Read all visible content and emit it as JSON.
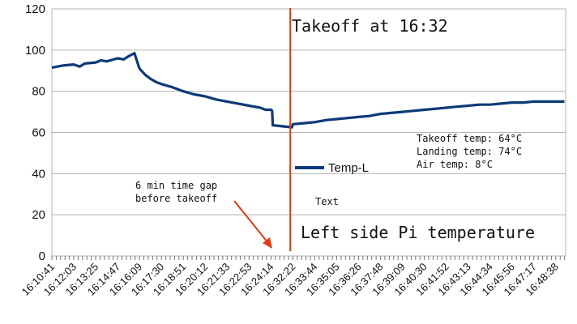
{
  "chart_data": {
    "type": "line",
    "title": "",
    "xlabel": "",
    "ylabel": "",
    "ylim": [
      0,
      120
    ],
    "yticks": [
      0,
      20,
      40,
      60,
      80,
      100,
      120
    ],
    "grid": "horizontal",
    "legend": "center",
    "x_tick_labels": [
      "16:10:41",
      "16:12:03",
      "16:13:25",
      "16:14:47",
      "16:16:09",
      "16:17:30",
      "16:18:51",
      "16:20:12",
      "16:21:33",
      "16:22:53",
      "16:24:14",
      "16:32:22",
      "16:33:44",
      "16:35:05",
      "16:36:26",
      "16:37:48",
      "16:39:09",
      "16:40:30",
      "16:41:52",
      "16:43:13",
      "16:44:34",
      "16:45:56",
      "16:47:17",
      "16:48:38"
    ],
    "series": [
      {
        "name": "Temp-L",
        "color": "#0d3a78",
        "points": [
          [
            "16:10:41",
            91.5
          ],
          [
            "16:11:22",
            92.5
          ],
          [
            "16:12:03",
            93
          ],
          [
            "16:12:25",
            92
          ],
          [
            "16:12:44",
            93.5
          ],
          [
            "16:13:25",
            94
          ],
          [
            "16:13:45",
            95
          ],
          [
            "16:14:06",
            94.5
          ],
          [
            "16:14:47",
            96
          ],
          [
            "16:15:10",
            95.5
          ],
          [
            "16:15:28",
            97
          ],
          [
            "16:15:50",
            98.5
          ],
          [
            "16:16:09",
            91
          ],
          [
            "16:16:30",
            88
          ],
          [
            "16:16:50",
            86
          ],
          [
            "16:17:10",
            84.5
          ],
          [
            "16:17:30",
            83.5
          ],
          [
            "16:18:10",
            82
          ],
          [
            "16:18:51",
            80
          ],
          [
            "16:19:31",
            78.5
          ],
          [
            "16:20:12",
            77.5
          ],
          [
            "16:20:52",
            76
          ],
          [
            "16:21:33",
            75
          ],
          [
            "16:22:13",
            74
          ],
          [
            "16:22:53",
            73
          ],
          [
            "16:23:34",
            72
          ],
          [
            "16:23:54",
            71
          ],
          [
            "16:24:14",
            71
          ],
          [
            "16:24:40",
            70.5
          ],
          [
            "16:24:55",
            63.5
          ],
          [
            "16:32:00",
            62.5
          ],
          [
            "16:32:22",
            64
          ],
          [
            "16:33:03",
            64.5
          ],
          [
            "16:33:44",
            65
          ],
          [
            "16:34:25",
            66
          ],
          [
            "16:35:05",
            66.5
          ],
          [
            "16:35:46",
            67
          ],
          [
            "16:36:26",
            67.5
          ],
          [
            "16:37:07",
            68
          ],
          [
            "16:37:48",
            69
          ],
          [
            "16:38:28",
            69.5
          ],
          [
            "16:39:09",
            70
          ],
          [
            "16:39:50",
            70.5
          ],
          [
            "16:40:30",
            71
          ],
          [
            "16:41:11",
            71.5
          ],
          [
            "16:41:52",
            72
          ],
          [
            "16:42:32",
            72.5
          ],
          [
            "16:43:13",
            73
          ],
          [
            "16:43:54",
            73.5
          ],
          [
            "16:44:34",
            73.5
          ],
          [
            "16:45:15",
            74
          ],
          [
            "16:45:56",
            74.5
          ],
          [
            "16:46:36",
            74.5
          ],
          [
            "16:47:17",
            75
          ],
          [
            "16:47:58",
            75
          ],
          [
            "16:48:38",
            75
          ],
          [
            "16:49:10",
            75
          ]
        ]
      }
    ],
    "annotations": {
      "takeoff_title": "Takeoff at 16:32",
      "takeoff_temp": "Takeoff temp: 64°C",
      "landing_temp": "Landing temp: 74°C",
      "air_temp": "Air temp: 8°C",
      "gap_line1": "6 min time gap",
      "gap_line2": "before takeoff",
      "placeholder_text": "Text",
      "bottom_title": "Left side Pi temperature",
      "takeoff_marker_time": "16:32:00"
    },
    "colors": {
      "series": "#0d3a78",
      "marker": "#e23b12",
      "grid": "#b3b3b3"
    }
  }
}
